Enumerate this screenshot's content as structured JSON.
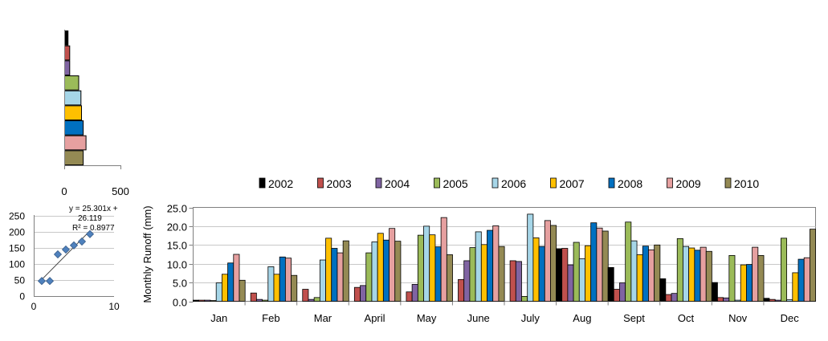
{
  "colors": [
    "#000000",
    "#c0504d",
    "#8064a2",
    "#9bbb59",
    "#a6d6e8",
    "#ffc000",
    "#0070c0",
    "#e6a0a0",
    "#948a54"
  ],
  "chart_data": [
    {
      "type": "bar",
      "orientation": "horizontal",
      "categories": [
        "2002",
        "2003",
        "2004",
        "2005",
        "2006",
        "2007",
        "2008",
        "2009",
        "2010"
      ],
      "values": [
        30,
        45,
        45,
        125,
        145,
        150,
        165,
        190,
        165
      ],
      "xlim": [
        0,
        500
      ],
      "xticks": [
        "0",
        "500"
      ],
      "grid": false,
      "legend": "none"
    },
    {
      "type": "scatter",
      "x": [
        1,
        2,
        3,
        4,
        5,
        6,
        7
      ],
      "y": [
        47,
        47,
        130,
        145,
        158,
        170,
        193
      ],
      "xlim": [
        0,
        10
      ],
      "ylim": [
        0,
        250
      ],
      "xticks": [
        "0",
        "10"
      ],
      "yticks": [
        "0",
        "50",
        "100",
        "150",
        "200",
        "250"
      ],
      "trendline": {
        "slope": 25.301,
        "intercept": 26.119
      },
      "annotation": [
        "y = 25.301x +",
        "26.119",
        "R² = 0.8977"
      ],
      "grid": true
    },
    {
      "type": "bar",
      "categories": [
        "Jan",
        "Feb",
        "Mar",
        "April",
        "May",
        "June",
        "July",
        "Aug",
        "Sept",
        "Oct",
        "Nov",
        "Dec"
      ],
      "ylabel": "Monthly  Runoff (mm)",
      "ylim": [
        0,
        25
      ],
      "yticks": [
        "0.0",
        "5.0",
        "10.0",
        "15.0",
        "20.0",
        "25.0"
      ],
      "grid": true,
      "legend": "top",
      "series": [
        {
          "name": "2002",
          "values": [
            0.3,
            0.0,
            0.0,
            0.0,
            0.0,
            0.0,
            0.0,
            14.0,
            9.0,
            6.0,
            5.0,
            0.8
          ]
        },
        {
          "name": "2003",
          "values": [
            0.3,
            2.2,
            3.2,
            3.7,
            2.5,
            5.8,
            10.8,
            14.1,
            3.2,
            1.8,
            1.0,
            0.5
          ]
        },
        {
          "name": "2004",
          "values": [
            0.3,
            0.5,
            0.5,
            4.2,
            4.5,
            10.8,
            10.6,
            9.7,
            4.9,
            2.1,
            0.9,
            0.3
          ]
        },
        {
          "name": "2005",
          "values": [
            0.2,
            0.3,
            1.0,
            12.9,
            17.6,
            14.3,
            1.3,
            15.7,
            21.1,
            16.7,
            12.2,
            16.8
          ]
        },
        {
          "name": "2006",
          "values": [
            4.9,
            9.2,
            11.0,
            15.8,
            20.0,
            18.5,
            23.2,
            11.3,
            16.1,
            14.6,
            0.3,
            0.4
          ]
        },
        {
          "name": "2007",
          "values": [
            7.2,
            7.2,
            16.8,
            18.1,
            17.7,
            15.1,
            16.9,
            14.8,
            12.4,
            14.2,
            9.7,
            7.6
          ]
        },
        {
          "name": "2008",
          "values": [
            10.2,
            11.8,
            14.1,
            16.3,
            14.5,
            18.9,
            14.6,
            20.9,
            14.7,
            13.6,
            9.8,
            11.2
          ]
        },
        {
          "name": "2009",
          "values": [
            12.5,
            11.5,
            12.9,
            19.4,
            22.3,
            20.1,
            21.5,
            19.5,
            13.7,
            14.4,
            14.4,
            11.6
          ]
        },
        {
          "name": "2010",
          "values": [
            5.6,
            6.9,
            16.1,
            16.0,
            12.4,
            14.6,
            20.2,
            18.7,
            15.0,
            13.3,
            12.2,
            19.2
          ]
        }
      ]
    }
  ]
}
